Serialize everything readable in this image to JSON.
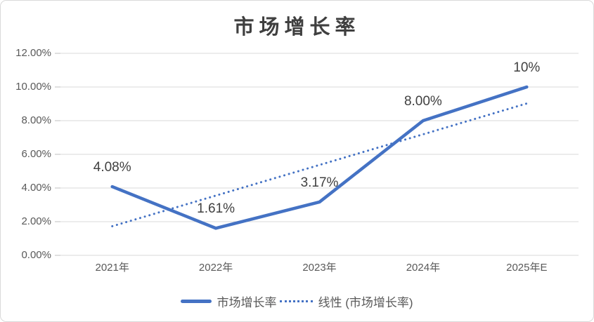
{
  "chart_data": {
    "type": "line",
    "title": "市场增长率",
    "categories": [
      "2021年",
      "2022年",
      "2023年",
      "2024年",
      "2025年E"
    ],
    "series": [
      {
        "name": "市场增长率",
        "style": "solid",
        "values": [
          4.08,
          1.61,
          3.17,
          8.0,
          10.0
        ],
        "data_labels": [
          "4.08%",
          "1.61%",
          "3.17%",
          "8.00%",
          "10%"
        ]
      },
      {
        "name": "线性 (市场增长率)",
        "style": "dotted",
        "kind": "linear-trendline",
        "values": [
          1.73,
          3.55,
          5.37,
          7.19,
          9.02
        ]
      }
    ],
    "ylim": [
      0,
      12
    ],
    "y_tick_step": 2,
    "y_tick_labels": [
      "0.00%",
      "2.00%",
      "4.00%",
      "6.00%",
      "8.00%",
      "10.00%",
      "12.00%"
    ],
    "grid": true,
    "legend_position": "bottom",
    "colors": {
      "series": "#4472C4",
      "trendline": "#4472C4",
      "gridline": "#D9D9D9",
      "tick": "#BFBFBF",
      "axis_label": "#595959",
      "data_label": "#404040",
      "title": "#3F3F3F",
      "border": "#D9D9D9",
      "background": "#FFFFFF"
    }
  }
}
